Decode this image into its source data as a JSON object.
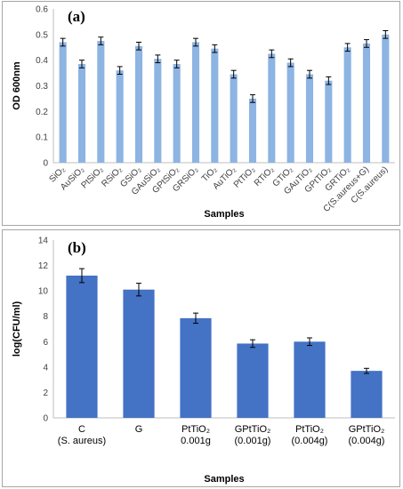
{
  "chart_data": [
    {
      "type": "bar",
      "panel_label": "(a)",
      "title": "",
      "xlabel": "Samples",
      "ylabel": "OD 600nm",
      "ylim": [
        0,
        0.6
      ],
      "yticks": [
        "0",
        "0.1",
        "0.2",
        "0.3",
        "0.4",
        "0.5",
        "0.6"
      ],
      "grid": false,
      "error_bars": true,
      "color": "#8db4e2",
      "categories": [
        "SiO₂",
        "AuSiO₂",
        "PtSiO₂",
        "RSiO₂",
        "GSiO₂",
        "GAuSiO₂",
        "GPtSiO₂",
        "GRSiO₂",
        "TiO₂",
        "AuTiO₂",
        "PtTiO₂",
        "RTiO₂",
        "GTiO₂",
        "GAuTiO₂",
        "GPtTiO₂",
        "GRTiO₂",
        "C(S.aureus+G)",
        "C(S.aureus)"
      ],
      "values": [
        0.47,
        0.385,
        0.475,
        0.36,
        0.455,
        0.405,
        0.385,
        0.47,
        0.445,
        0.345,
        0.25,
        0.425,
        0.39,
        0.345,
        0.32,
        0.45,
        0.465,
        0.5
      ],
      "errors": [
        0.015,
        0.015,
        0.015,
        0.015,
        0.015,
        0.015,
        0.015,
        0.015,
        0.015,
        0.015,
        0.015,
        0.015,
        0.015,
        0.015,
        0.015,
        0.015,
        0.015,
        0.015
      ]
    },
    {
      "type": "bar",
      "panel_label": "(b)",
      "title": "",
      "xlabel": "Samples",
      "ylabel": "log(CFU/ml)",
      "ylim": [
        0,
        14
      ],
      "yticks": [
        "0",
        "2",
        "4",
        "6",
        "8",
        "10",
        "12",
        "14"
      ],
      "grid": false,
      "error_bars": true,
      "color": "#4472c4",
      "categories": [
        [
          "C",
          "(S. aureus)"
        ],
        [
          "G",
          ""
        ],
        [
          "PtTiO₂",
          "0.001g"
        ],
        [
          "GPtTiO₂",
          "(0.001g)"
        ],
        [
          "PtTiO₂",
          "(0.004g)"
        ],
        [
          "GPtTiO₂",
          "(0.004g)"
        ]
      ],
      "values": [
        11.2,
        10.1,
        7.85,
        5.85,
        6.0,
        3.7
      ],
      "errors": [
        0.55,
        0.5,
        0.4,
        0.3,
        0.3,
        0.2
      ]
    }
  ]
}
